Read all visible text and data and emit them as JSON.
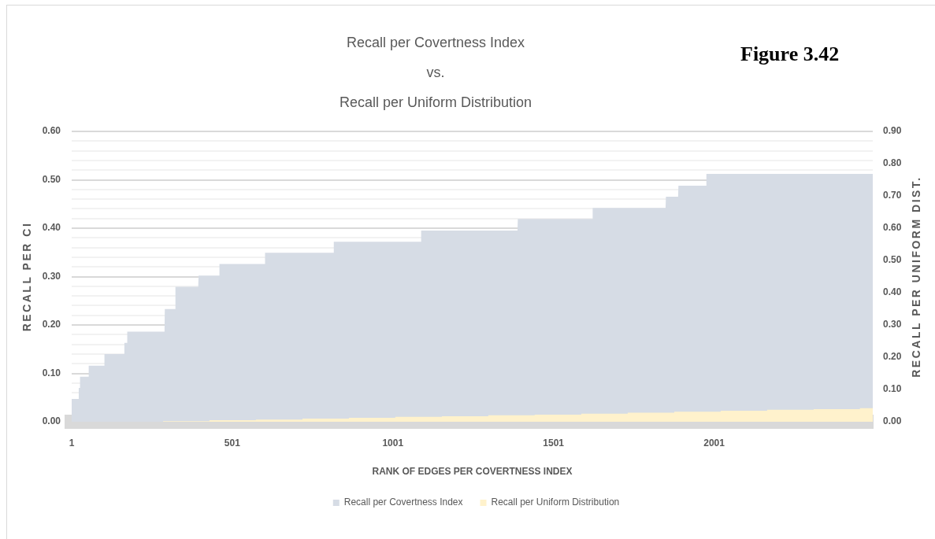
{
  "chart_data": {
    "type": "area",
    "title": "Recall per Covertness Index\nvs.\nRecall per Uniform Distribution",
    "xlabel": "RANK OF EDGES PER COVERTNESS INDEX",
    "ylabel": "RECALL PER CI",
    "y2label": "RECALL PER UNIFORM DIST.",
    "annotations": [
      "Figure 3.42"
    ],
    "xlim": [
      1,
      2495
    ],
    "xticks": [
      1,
      501,
      1001,
      1501,
      2001
    ],
    "ylim": [
      0,
      0.6
    ],
    "yticks": [
      {
        "value": 0,
        "label": "0.00"
      },
      {
        "value": 0.06,
        "label": null
      },
      {
        "value": 0.08,
        "label": null
      },
      {
        "value": 0.1,
        "label": "0.10"
      },
      {
        "value": 0.12,
        "label": null
      },
      {
        "value": 0.14,
        "label": null
      },
      {
        "value": 0.16,
        "label": null
      },
      {
        "value": 0.18,
        "label": null
      },
      {
        "value": 0.2,
        "label": "0.20"
      },
      {
        "value": 0.22,
        "label": null
      },
      {
        "value": 0.24,
        "label": null
      },
      {
        "value": 0.26,
        "label": null
      },
      {
        "value": 0.28,
        "label": null
      },
      {
        "value": 0.3,
        "label": "0.30"
      },
      {
        "value": 0.32,
        "label": null
      },
      {
        "value": 0.34,
        "label": null
      },
      {
        "value": 0.36,
        "label": null
      },
      {
        "value": 0.38,
        "label": null
      },
      {
        "value": 0.4,
        "label": "0.40"
      },
      {
        "value": 0.42,
        "label": null
      },
      {
        "value": 0.44,
        "label": null
      },
      {
        "value": 0.46,
        "label": null
      },
      {
        "value": 0.48,
        "label": null
      },
      {
        "value": 0.5,
        "label": "0.50"
      },
      {
        "value": 0.52,
        "label": null
      },
      {
        "value": 0.54,
        "label": null
      },
      {
        "value": 0.56,
        "label": null
      },
      {
        "value": 0.58,
        "label": null
      },
      {
        "value": 0.6,
        "label": "0.60"
      }
    ],
    "y2lim": [
      0,
      0.9
    ],
    "y2ticks": [
      {
        "value": 0,
        "label": "0.00"
      },
      {
        "value": 0.1,
        "label": "0.10"
      },
      {
        "value": 0.2,
        "label": "0.20"
      },
      {
        "value": 0.3,
        "label": "0.30"
      },
      {
        "value": 0.4,
        "label": "0.40"
      },
      {
        "value": 0.5,
        "label": "0.50"
      },
      {
        "value": 0.6,
        "label": "0.60"
      },
      {
        "value": 0.7,
        "label": "0.70"
      },
      {
        "value": 0.8,
        "label": "0.80"
      },
      {
        "value": 0.9,
        "label": "0.90"
      }
    ],
    "grid": "y",
    "legend": "bottom",
    "series": [
      {
        "name": "Recall per Covertness Index",
        "color": "#d6dce5",
        "x": [
          1,
          22,
          23,
          26,
          27,
          53,
          54,
          102,
          103,
          164,
          165,
          173,
          174,
          290,
          291,
          323,
          324,
          395,
          396,
          460,
          461,
          602,
          603,
          816,
          817,
          1088,
          1089,
          1389,
          1390,
          1622,
          1623,
          1850,
          1851,
          1889,
          1890,
          1976,
          1977,
          2495
        ],
        "values": [
          0.047,
          0.047,
          0.07,
          0.07,
          0.093,
          0.093,
          0.116,
          0.116,
          0.14,
          0.14,
          0.163,
          0.163,
          0.186,
          0.186,
          0.233,
          0.233,
          0.279,
          0.279,
          0.302,
          0.302,
          0.326,
          0.326,
          0.349,
          0.349,
          0.372,
          0.372,
          0.395,
          0.395,
          0.419,
          0.419,
          0.442,
          0.442,
          0.465,
          0.465,
          0.488,
          0.488,
          0.512,
          0.512
        ]
      },
      {
        "name": "Recall per Uniform Distribution",
        "color": "#fff2cc",
        "axis": "y2",
        "x": [
          1,
          285,
          286,
          429,
          430,
          574,
          575,
          719,
          720,
          863,
          864,
          1008,
          1009,
          1153,
          1154,
          1297,
          1298,
          1442,
          1443,
          1587,
          1588,
          1731,
          1732,
          1876,
          1877,
          2021,
          2022,
          2165,
          2166,
          2310,
          2311,
          2454,
          2455,
          2495
        ],
        "values": [
          0,
          0,
          0.002,
          0.002,
          0.005,
          0.005,
          0.007,
          0.007,
          0.01,
          0.01,
          0.012,
          0.012,
          0.015,
          0.015,
          0.017,
          0.017,
          0.02,
          0.02,
          0.022,
          0.022,
          0.025,
          0.025,
          0.028,
          0.028,
          0.031,
          0.031,
          0.034,
          0.034,
          0.037,
          0.037,
          0.039,
          0.039,
          0.042,
          0.042
        ]
      }
    ]
  }
}
